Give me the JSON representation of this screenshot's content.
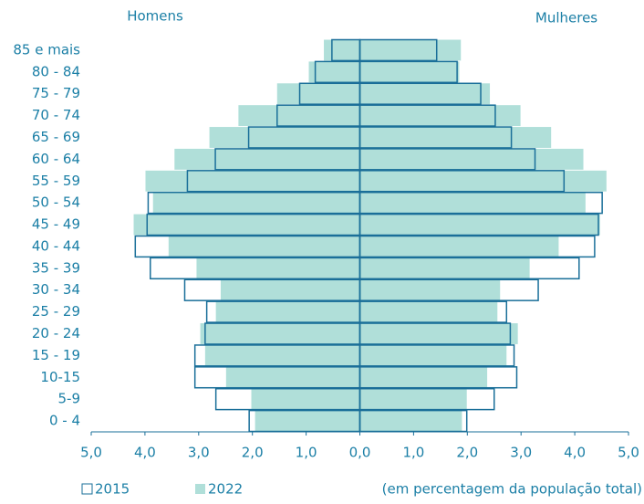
{
  "chart_data": {
    "type": "pyramid",
    "left_label": "Homens",
    "right_label": "Mulheres",
    "note": "(em percentagem da população total)",
    "categories": [
      "0 - 4",
      "5-9",
      "10-15",
      "15 - 19",
      "20 - 24",
      "25 - 29",
      "30 - 34",
      "35 - 39",
      "40 - 44",
      "45 - 49",
      "50 - 54",
      "55 - 59",
      "60 - 64",
      "65 - 69",
      "70 - 74",
      "75 - 79",
      "80 - 84",
      "85 e mais"
    ],
    "series": [
      {
        "name": "2022",
        "style": "filled",
        "color": "#b0dfd9",
        "men": [
          1.95,
          2.02,
          2.49,
          2.88,
          2.97,
          2.68,
          2.59,
          3.04,
          3.56,
          4.21,
          3.85,
          3.99,
          3.45,
          2.8,
          2.26,
          1.54,
          0.95,
          0.67
        ],
        "women": [
          1.9,
          1.99,
          2.37,
          2.73,
          2.94,
          2.56,
          2.61,
          3.16,
          3.7,
          4.47,
          4.2,
          4.59,
          4.16,
          3.56,
          2.99,
          2.42,
          1.85,
          1.88
        ]
      },
      {
        "name": "2015",
        "style": "outline",
        "color": "#1a6f99",
        "men": [
          2.06,
          2.68,
          3.07,
          3.07,
          2.88,
          2.85,
          3.26,
          3.9,
          4.18,
          3.96,
          3.94,
          3.21,
          2.69,
          2.07,
          1.54,
          1.12,
          0.83,
          0.52
        ],
        "women": [
          1.99,
          2.5,
          2.92,
          2.87,
          2.8,
          2.73,
          3.32,
          4.08,
          4.37,
          4.44,
          4.51,
          3.8,
          3.26,
          2.82,
          2.52,
          2.25,
          1.81,
          1.43
        ]
      }
    ],
    "xlim": [
      -5,
      5
    ],
    "xticks": [
      {
        "value": -5,
        "label": "5,0"
      },
      {
        "value": -4,
        "label": "4,0"
      },
      {
        "value": -3,
        "label": "3,0"
      },
      {
        "value": -2,
        "label": "2,0"
      },
      {
        "value": -1,
        "label": "1,0"
      },
      {
        "value": 0,
        "label": "0,0"
      },
      {
        "value": 1,
        "label": "1,0"
      },
      {
        "value": 2,
        "label": "2,0"
      },
      {
        "value": 3,
        "label": "3,0"
      },
      {
        "value": 4,
        "label": "4,0"
      },
      {
        "value": 5,
        "label": "5,0"
      }
    ]
  }
}
